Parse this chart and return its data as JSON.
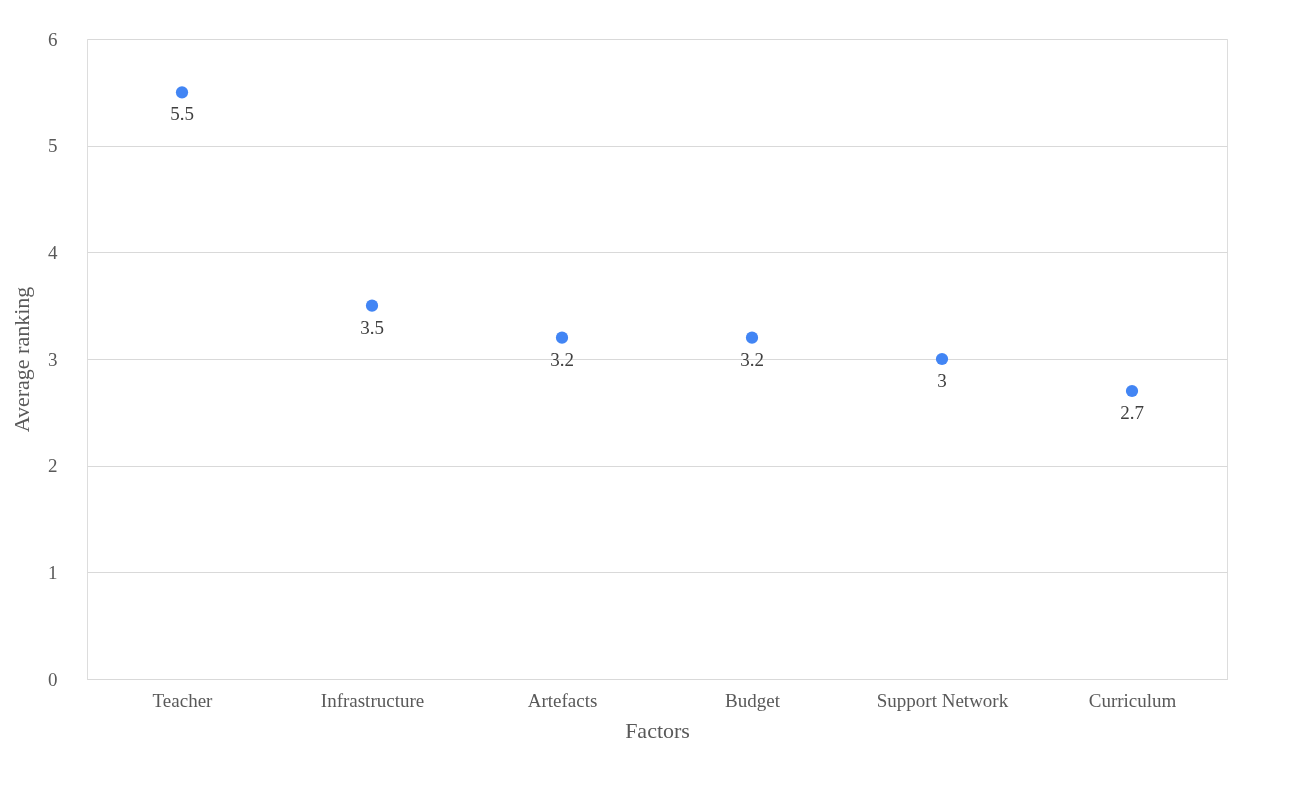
{
  "chart_data": {
    "type": "scatter",
    "xlabel": "Factors",
    "ylabel": "Average ranking",
    "categories": [
      "Teacher",
      "Infrastructure",
      "Artefacts",
      "Budget",
      "Support Network",
      "Curriculum"
    ],
    "series": [
      {
        "color": "#4285f4",
        "values": [
          5.5,
          3.5,
          3.2,
          3.2,
          3,
          2.7
        ]
      }
    ],
    "ylim": [
      0,
      6
    ],
    "yticks": [
      0,
      1,
      2,
      3,
      4,
      5,
      6
    ],
    "grid": "y",
    "marker": "circle",
    "data_labels": true
  }
}
